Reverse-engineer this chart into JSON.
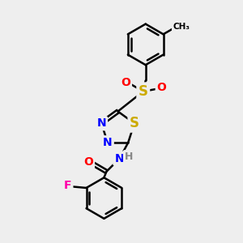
{
  "bg_color": "#eeeeee",
  "bond_color": "#000000",
  "bond_width": 1.8,
  "atom_colors": {
    "N": "#0000ff",
    "O": "#ff0000",
    "S": "#ccaa00",
    "F": "#ff00aa",
    "H": "#888888",
    "C": "#000000"
  },
  "font_size": 10
}
